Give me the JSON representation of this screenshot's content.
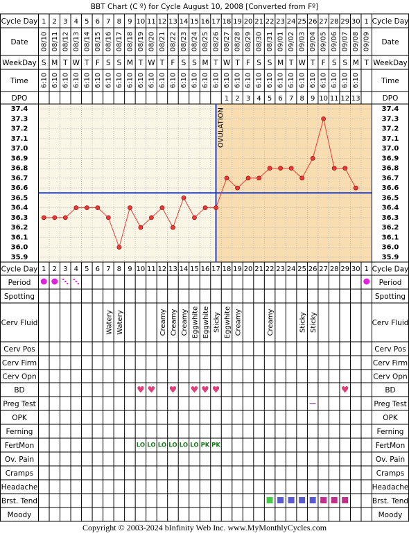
{
  "title": "BBT Chart (C º) for Cycle August 10, 2008  [Converted from Fº]",
  "footer": "Copyright © 2003-2024 bInfinity Web Inc.    www.MyMonthlyCycles.com",
  "row_labels": {
    "cycle_day": "Cycle Day",
    "date": "Date",
    "weekday": "WeekDay",
    "time": "Time",
    "dpo": "DPO",
    "period": "Period",
    "spotting": "Spotting",
    "cerv_fluid": "Cerv Fluid",
    "cerv_pos": "Cerv Pos",
    "cerv_firm": "Cerv Firm",
    "cerv_opn": "Cerv Opn",
    "bd": "BD",
    "preg_test": "Preg Test",
    "opk": "OPK",
    "ferning": "Ferning",
    "fertmon": "FertMon",
    "ov_pain": "Ov. Pain",
    "cramps": "Cramps",
    "headache": "Headache",
    "brst_tend": "Brst. Tend",
    "moody": "Moody"
  },
  "dates": [
    "08/10",
    "08/11",
    "08/12",
    "08/13",
    "08/14",
    "08/15",
    "08/16",
    "08/17",
    "08/18",
    "08/19",
    "08/20",
    "08/21",
    "08/22",
    "08/23",
    "08/24",
    "08/25",
    "08/26",
    "08/27",
    "08/28",
    "08/29",
    "08/30",
    "08/31",
    "09/01",
    "09/02",
    "09/03",
    "09/04",
    "09/05",
    "09/06",
    "09/07",
    "09/08",
    "09/09"
  ],
  "weekdays": [
    "S",
    "M",
    "T",
    "W",
    "T",
    "F",
    "S",
    "S",
    "M",
    "T",
    "W",
    "T",
    "F",
    "S",
    "S",
    "M",
    "T",
    "W",
    "T",
    "F",
    "S",
    "S",
    "M",
    "T",
    "W",
    "T",
    "F",
    "S",
    "S",
    "M",
    "T"
  ],
  "times": [
    "6:10",
    "6:10",
    "6:10",
    "6:10",
    "6:10",
    "6:10",
    "6:10",
    "6:10",
    "6:10",
    "6:10",
    "6:10",
    "6:10",
    "6:10",
    "6:10",
    "6:10",
    "6:10",
    "6:10",
    "6:10",
    "6:10",
    "6:10",
    "6:10",
    "6:10",
    "6:10",
    "6:10",
    "6:10",
    "6:10",
    "6:10",
    "6:10",
    "6:10",
    "6:10",
    null
  ],
  "dpo": [
    null,
    null,
    null,
    null,
    null,
    null,
    null,
    null,
    null,
    null,
    null,
    null,
    null,
    null,
    null,
    null,
    null,
    1,
    2,
    3,
    4,
    5,
    6,
    7,
    8,
    9,
    10,
    11,
    12,
    13,
    null
  ],
  "chart_data": {
    "type": "line",
    "categories": [
      1,
      2,
      3,
      4,
      5,
      6,
      7,
      8,
      9,
      10,
      11,
      12,
      13,
      14,
      15,
      16,
      17,
      18,
      19,
      20,
      21,
      22,
      23,
      24,
      25,
      26,
      27,
      28,
      29,
      30,
      1
    ],
    "values": [
      36.3,
      36.3,
      36.3,
      36.4,
      36.4,
      36.4,
      36.3,
      36.0,
      36.4,
      36.2,
      36.3,
      36.4,
      36.2,
      36.5,
      36.3,
      36.4,
      36.4,
      36.7,
      36.6,
      36.7,
      36.7,
      36.8,
      36.8,
      36.8,
      36.7,
      36.9,
      37.3,
      36.8,
      36.8,
      36.6,
      null
    ],
    "color": "#e83c3c",
    "ylim": [
      35.85,
      37.45
    ],
    "yticks": [
      35.9,
      {
        "value": 36,
        "label": "36.0"
      },
      36.1,
      36.2,
      36.3,
      36.4,
      36.5,
      36.6,
      36.7,
      36.8,
      36.9,
      {
        "value": 37,
        "label": "37.0"
      },
      37.1,
      37.2,
      37.3,
      37.4
    ],
    "grid": true,
    "coverline": 36.55,
    "coverline_color": "#1f3fcc",
    "ovulation_day": 17,
    "ovulation_label": "OVULATION"
  },
  "period": {
    "full": [
      0,
      1,
      30
    ],
    "light": [
      2,
      3
    ],
    "color": "#e020e0"
  },
  "cerv_fluid": [
    null,
    null,
    null,
    null,
    null,
    null,
    "Watery",
    "Watery",
    null,
    null,
    null,
    "Creamy",
    "Creamy",
    "Creamy",
    "Eggwhite",
    "Eggwhite",
    "Sticky",
    "Eggwhite",
    "Creamy",
    null,
    null,
    "Creamy",
    null,
    null,
    "Sticky",
    "Sticky",
    null,
    null,
    null,
    null,
    null
  ],
  "bd": [
    null,
    null,
    null,
    null,
    null,
    null,
    null,
    null,
    null,
    "♥",
    "♥",
    null,
    "♥",
    null,
    "♥",
    "♥",
    "♥",
    null,
    null,
    null,
    null,
    null,
    null,
    null,
    null,
    null,
    null,
    null,
    "♥",
    null,
    null
  ],
  "preg_test": [
    null,
    null,
    null,
    null,
    null,
    null,
    null,
    null,
    null,
    null,
    null,
    null,
    null,
    null,
    null,
    null,
    null,
    null,
    null,
    null,
    null,
    null,
    null,
    null,
    null,
    "—",
    null,
    null,
    null,
    null,
    null
  ],
  "fertmon": [
    null,
    null,
    null,
    null,
    null,
    null,
    null,
    null,
    null,
    "LO",
    "LO",
    "LO",
    "LO",
    "LO",
    "LO",
    "PK",
    "PK",
    null,
    null,
    null,
    null,
    null,
    null,
    null,
    null,
    null,
    null,
    null,
    null,
    null,
    null
  ],
  "brst_tend": [
    null,
    null,
    null,
    null,
    null,
    null,
    null,
    null,
    null,
    null,
    null,
    null,
    null,
    null,
    null,
    null,
    null,
    null,
    null,
    null,
    null,
    "#44cc44",
    "#5a5ad0",
    "#5a5ad0",
    "#5a5ad0",
    "#5a5ad0",
    "#c0308c",
    "#c0308c",
    "#c0308c",
    null,
    null
  ]
}
